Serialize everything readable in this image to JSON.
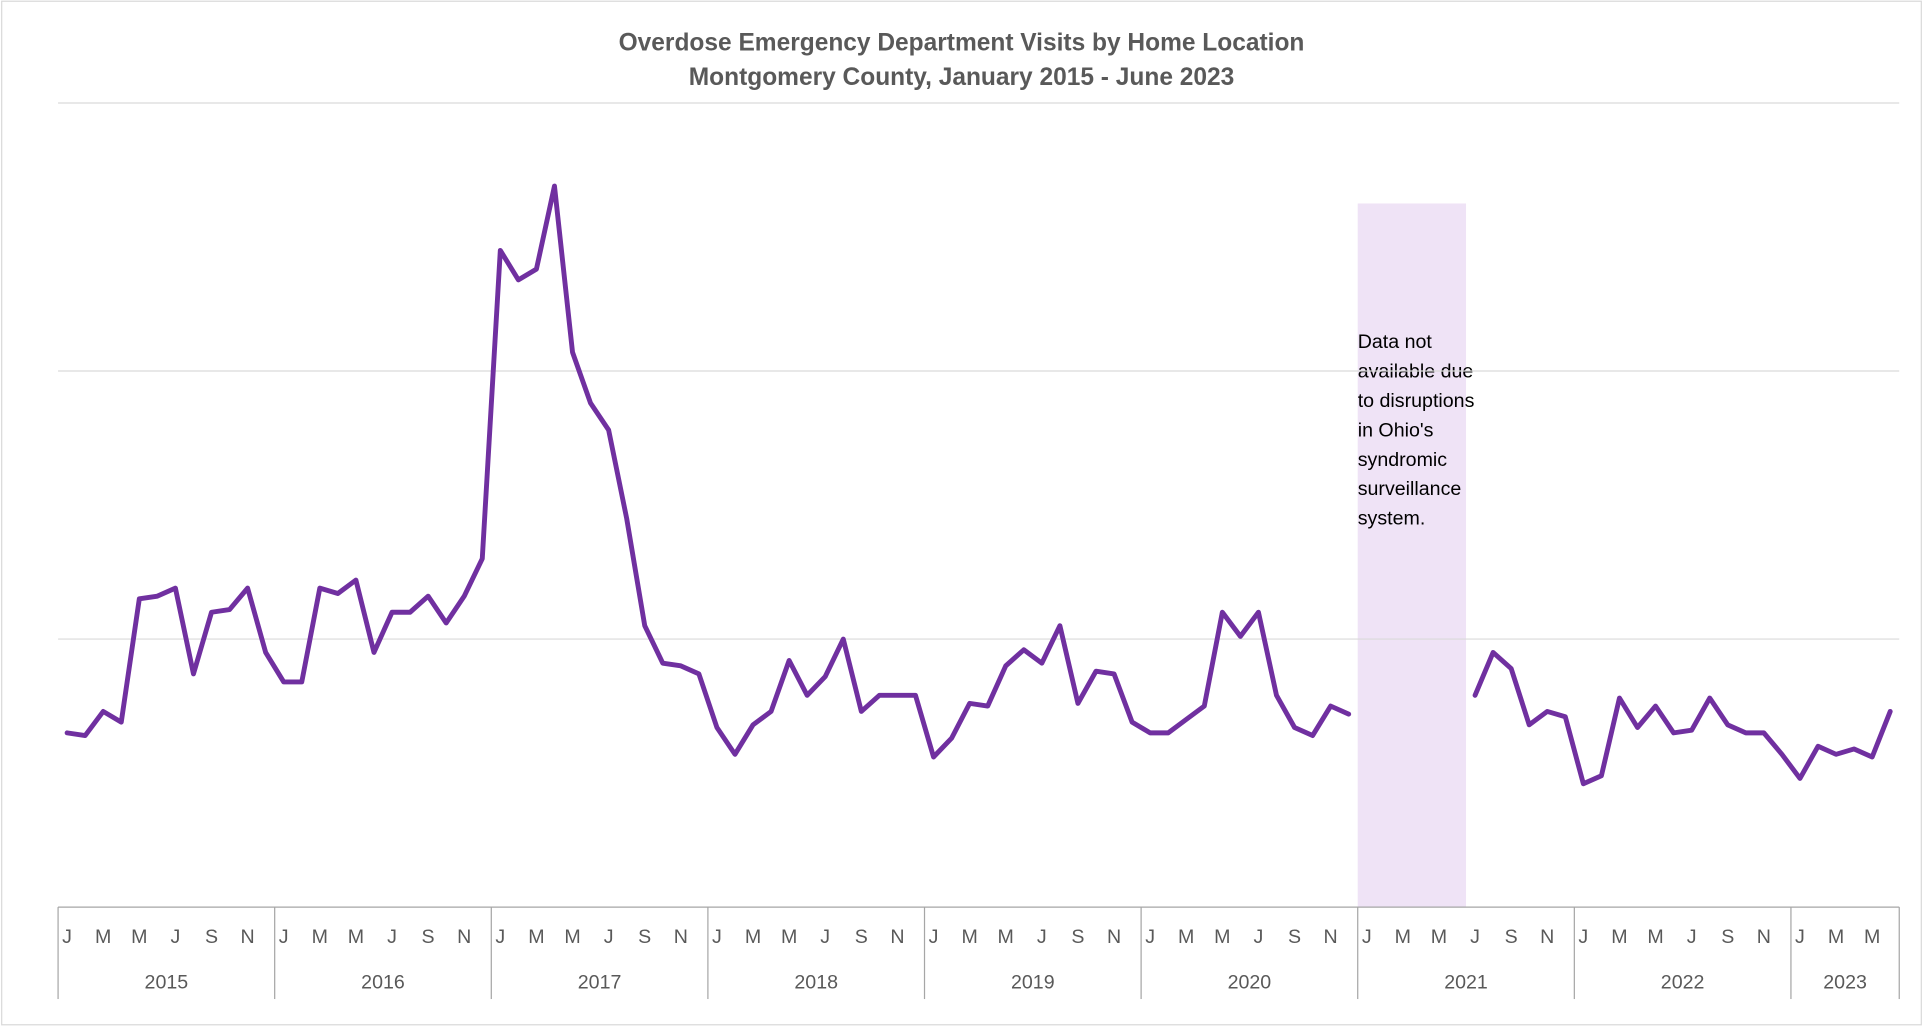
{
  "chart_data": {
    "type": "line",
    "title": "Overdose Emergency Department Visits by Home Location",
    "subtitle": "Montgomery County, January 2015 - June 2023",
    "categories": [
      "J",
      null,
      "M",
      null,
      "M",
      null,
      "J",
      null,
      "S",
      null,
      "N",
      null,
      "J",
      null,
      "M",
      null,
      "M",
      null,
      "J",
      null,
      "S",
      null,
      "N",
      null,
      "J",
      null,
      "M",
      null,
      "M",
      null,
      "J",
      null,
      "S",
      null,
      "N",
      null,
      "J",
      null,
      "M",
      null,
      "M",
      null,
      "J",
      null,
      "S",
      null,
      "N",
      null,
      "J",
      null,
      "M",
      null,
      "M",
      null,
      "J",
      null,
      "S",
      null,
      "N",
      null,
      "J",
      null,
      "M",
      null,
      "M",
      null,
      "J",
      null,
      "S",
      null,
      "N",
      null,
      "J",
      null,
      "M",
      null,
      "M",
      null,
      "J",
      null,
      "S",
      null,
      "N",
      null,
      "J",
      null,
      "M",
      null,
      "M",
      null,
      "J",
      null,
      "S",
      null,
      "N",
      null,
      "J",
      null,
      "M",
      null,
      "M",
      null
    ],
    "years": [
      "2015",
      "2016",
      "2017",
      "2018",
      "2019",
      "2020",
      "2021",
      "2022",
      "2023"
    ],
    "series": [
      {
        "color": "#7030a0",
        "values": [
          65,
          64,
          73,
          69,
          115,
          116,
          119,
          87,
          110,
          111,
          119,
          95,
          84,
          84,
          119,
          117,
          122,
          95,
          110,
          110,
          116,
          106,
          116,
          130,
          245,
          234,
          238,
          269,
          207,
          188,
          178,
          145,
          105,
          91,
          90,
          87,
          67,
          57,
          68,
          73,
          92,
          79,
          86,
          100,
          73,
          79,
          79,
          79,
          56,
          63,
          76,
          75,
          90,
          96,
          91,
          105,
          76,
          88,
          87,
          69,
          65,
          65,
          70,
          75,
          110,
          101,
          110,
          79,
          67,
          64,
          75,
          72,
          null,
          null,
          null,
          null,
          null,
          null,
          79,
          95,
          89,
          68,
          73,
          71,
          46,
          49,
          78,
          67,
          75,
          65,
          66,
          78,
          68,
          65,
          65,
          57,
          48,
          60,
          57,
          59,
          56,
          73
        ]
      }
    ],
    "annotation": "Data not available due to disruptions in Ohio's syndromic surveillance system.",
    "ylim": [
      0,
      300
    ],
    "yticks": [
      100,
      200,
      300
    ],
    "grid": true
  }
}
